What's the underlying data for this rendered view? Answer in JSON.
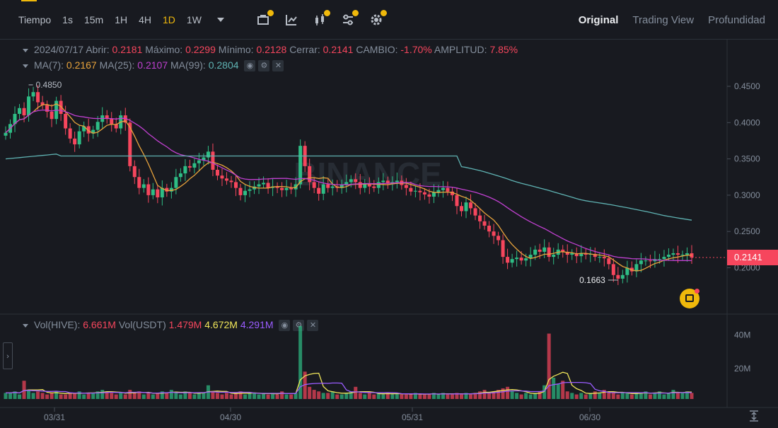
{
  "toolbar": {
    "time_label": "Tiempo",
    "intervals": [
      "1s",
      "15m",
      "1H",
      "4H",
      "1D",
      "1W"
    ],
    "active_interval": "1D",
    "tools": [
      "indicator-template-icon",
      "chart-line-icon",
      "candle-icon",
      "settings-sliders-icon",
      "gear-icon"
    ],
    "views": [
      "Original",
      "Trading View",
      "Profundidad"
    ],
    "active_view": "Original"
  },
  "ohlc": {
    "date": "2024/07/17",
    "open_label": "Abrir:",
    "open": "0.2181",
    "high_label": "Máximo:",
    "high": "0.2299",
    "low_label": "Mínimo:",
    "low": "0.2128",
    "close_label": "Cerrar:",
    "close": "0.2141",
    "change_label": "CAMBIO:",
    "change": "-1.70%",
    "amp_label": "AMPLITUD:",
    "amp": "7.85%"
  },
  "ma": {
    "ma7_label": "MA(7):",
    "ma7": "0.2167",
    "ma25_label": "MA(25):",
    "ma25": "0.2107",
    "ma99_label": "MA(99):",
    "ma99": "0.2804"
  },
  "vol": {
    "label1": "Vol(HIVE):",
    "value1": "6.661M",
    "label2": "Vol(USDT)",
    "value2": "1.479M",
    "value3": "4.672M",
    "value4": "4.291M"
  },
  "colors": {
    "up": "#2ebd85",
    "down": "#f6465d",
    "ma7": "#e8a33c",
    "ma25": "#c040d0",
    "ma99": "#5fb3b3",
    "vol_ma1": "#f0e65a",
    "vol_ma2": "#9a5cff"
  },
  "chart_data": {
    "type": "candlestick",
    "price_axis_ticks": [
      "0.4500",
      "0.4000",
      "0.3500",
      "0.3000",
      "0.2500",
      "0.2000"
    ],
    "volume_axis_ticks": [
      "40M",
      "20M"
    ],
    "date_ticks": [
      "03/31",
      "04/30",
      "05/31",
      "06/30"
    ],
    "last_price": "0.2141",
    "high_marker": "0.4850",
    "low_marker": "0.1663",
    "closes": [
      0.386,
      0.398,
      0.412,
      0.42,
      0.41,
      0.436,
      0.442,
      0.428,
      0.424,
      0.415,
      0.405,
      0.43,
      0.412,
      0.392,
      0.378,
      0.37,
      0.388,
      0.395,
      0.385,
      0.39,
      0.401,
      0.41,
      0.405,
      0.398,
      0.392,
      0.41,
      0.4,
      0.34,
      0.325,
      0.31,
      0.315,
      0.3,
      0.308,
      0.297,
      0.31,
      0.305,
      0.31,
      0.325,
      0.33,
      0.34,
      0.338,
      0.344,
      0.348,
      0.352,
      0.36,
      0.335,
      0.327,
      0.323,
      0.32,
      0.318,
      0.31,
      0.3,
      0.306,
      0.308,
      0.312,
      0.315,
      0.317,
      0.31,
      0.312,
      0.31,
      0.307,
      0.31,
      0.308,
      0.315,
      0.368,
      0.34,
      0.318,
      0.31,
      0.302,
      0.315,
      0.31,
      0.312,
      0.31,
      0.315,
      0.318,
      0.322,
      0.318,
      0.31,
      0.315,
      0.312,
      0.31,
      0.318,
      0.32,
      0.316,
      0.318,
      0.32,
      0.314,
      0.31,
      0.305,
      0.306,
      0.304,
      0.301,
      0.298,
      0.304,
      0.307,
      0.31,
      0.305,
      0.3,
      0.285,
      0.278,
      0.29,
      0.282,
      0.272,
      0.264,
      0.258,
      0.25,
      0.244,
      0.238,
      0.215,
      0.207,
      0.212,
      0.214,
      0.21,
      0.213,
      0.218,
      0.225,
      0.222,
      0.228,
      0.215,
      0.218,
      0.225,
      0.222,
      0.218,
      0.22,
      0.216,
      0.22,
      0.218,
      0.219,
      0.215,
      0.215,
      0.213,
      0.205,
      0.19,
      0.185,
      0.19,
      0.2,
      0.195,
      0.205,
      0.21,
      0.21,
      0.209,
      0.212,
      0.212,
      0.215,
      0.218,
      0.22,
      0.218,
      0.218,
      0.22,
      0.2141
    ],
    "volumes": [
      4,
      4,
      5,
      3,
      12,
      6,
      4,
      5,
      4,
      3,
      4,
      5,
      3,
      3,
      4,
      4,
      5,
      3,
      4,
      4,
      5,
      6,
      5,
      4,
      3,
      4,
      3,
      6,
      4,
      5,
      3,
      4,
      3,
      4,
      5,
      4,
      6,
      4,
      3,
      5,
      4,
      3,
      4,
      4,
      9,
      5,
      4,
      3,
      4,
      3,
      4,
      5,
      3,
      4,
      4,
      3,
      4,
      3,
      4,
      3,
      5,
      3,
      3,
      4,
      48,
      18,
      8,
      6,
      5,
      4,
      4,
      5,
      3,
      3,
      4,
      5,
      8,
      4,
      3,
      4,
      3,
      4,
      3,
      4,
      3,
      4,
      3,
      3,
      3,
      4,
      3,
      3,
      3,
      4,
      3,
      4,
      3,
      3,
      4,
      3,
      4,
      3,
      4,
      5,
      6,
      4,
      5,
      6,
      7,
      8,
      5,
      4,
      3,
      4,
      3,
      4,
      5,
      9,
      43,
      14,
      10,
      12,
      5,
      4,
      3,
      4,
      3,
      4,
      5,
      4,
      6,
      5,
      4,
      3,
      4,
      4,
      3,
      4,
      4,
      5,
      3,
      4,
      5,
      3,
      4,
      6,
      4,
      4,
      5,
      4
    ]
  }
}
